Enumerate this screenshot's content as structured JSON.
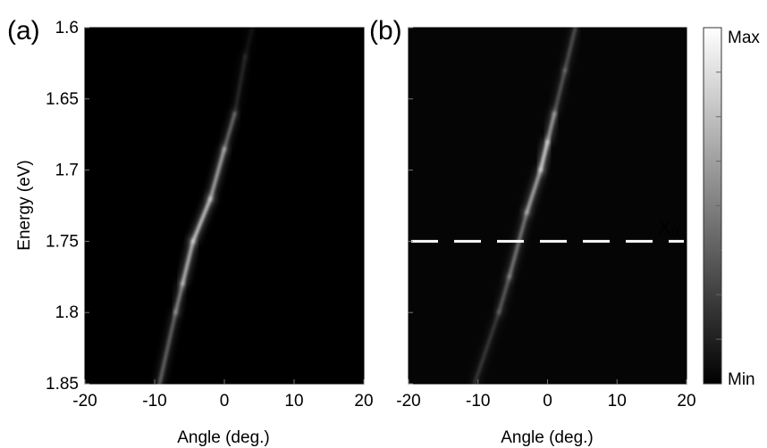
{
  "chart_data": [
    {
      "type": "heatmap",
      "panel_label": "(a)",
      "xlabel": "Angle (deg.)",
      "ylabel": "Energy (eV)",
      "xlim": [
        -20,
        20
      ],
      "ylim": [
        1.6,
        1.85
      ],
      "y_reversed": true,
      "xticks": [
        -20,
        -10,
        0,
        10,
        20
      ],
      "yticks": [
        1.6,
        1.65,
        1.7,
        1.75,
        1.8,
        1.85
      ],
      "xtick_labels": [
        "-20",
        "-10",
        "0",
        "10",
        "20"
      ],
      "ytick_labels": [
        "1.6",
        "1.65",
        "1.7",
        "1.75",
        "1.8",
        "1.85"
      ],
      "background": "#000000",
      "features": [
        {
          "kind": "bright_dispersive_band",
          "points": [
            [
              -9.3,
              1.85
            ],
            [
              -7,
              1.8
            ],
            [
              -6,
              1.78
            ],
            [
              -4.5,
              1.75
            ],
            [
              -2,
              1.72
            ],
            [
              0,
              1.685
            ],
            [
              1.5,
              1.66
            ],
            [
              3,
              1.62
            ],
            [
              4,
              1.6
            ]
          ],
          "intensity": [
            0.3,
            0.5,
            0.6,
            0.95,
            0.75,
            0.65,
            0.2,
            0.1,
            0.05
          ]
        }
      ]
    },
    {
      "type": "heatmap",
      "panel_label": "(b)",
      "xlabel": "Angle (deg.)",
      "ylabel": "",
      "xlim": [
        -20,
        20
      ],
      "ylim": [
        1.6,
        1.85
      ],
      "y_reversed": true,
      "xticks": [
        -20,
        -10,
        0,
        10,
        20
      ],
      "yticks": [
        1.6,
        1.65,
        1.7,
        1.75,
        1.8,
        1.85
      ],
      "xtick_labels": [
        "-20",
        "-10",
        "0",
        "10",
        "20"
      ],
      "background": "#050505",
      "features": [
        {
          "kind": "bright_dispersive_band",
          "points": [
            [
              -10.5,
              1.85
            ],
            [
              -7,
              1.8
            ],
            [
              -5.5,
              1.775
            ],
            [
              -3,
              1.73
            ],
            [
              -1,
              1.7
            ],
            [
              0,
              1.68
            ],
            [
              1,
              1.66
            ],
            [
              2.5,
              1.63
            ],
            [
              4,
              1.6
            ]
          ],
          "intensity": [
            0.1,
            0.3,
            0.4,
            0.55,
            0.85,
            1.0,
            0.3,
            0.35,
            0.25
          ]
        }
      ],
      "reference_line": {
        "y": 1.75,
        "style": "dashed",
        "color": "#ffffff",
        "label": "X₀"
      }
    }
  ],
  "colorbar": {
    "max_label": "Max",
    "min_label": "Min",
    "colormap": "gray"
  }
}
